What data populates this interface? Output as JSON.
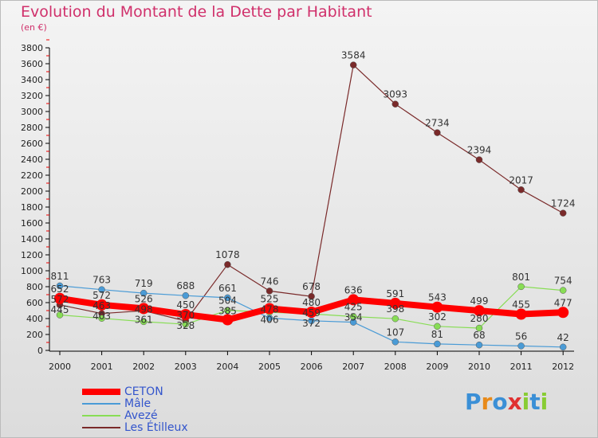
{
  "header": {
    "title": "Evolution du Montant de la Dette par Habitant",
    "unit": "(en €)"
  },
  "logo": "Proxiti",
  "chart_data": {
    "type": "line",
    "title": "Evolution du Montant de la Dette par Habitant",
    "ylabel": "(en €)",
    "ylim": [
      0,
      3800
    ],
    "yticks": [
      0,
      200,
      400,
      600,
      800,
      1000,
      1200,
      1400,
      1600,
      1800,
      2000,
      2200,
      2400,
      2600,
      2800,
      3000,
      3200,
      3400,
      3600,
      3800
    ],
    "x": [
      "2000",
      "2001",
      "2002",
      "2003",
      "2004",
      "2005",
      "2006",
      "2007",
      "2008",
      "2009",
      "2010",
      "2011",
      "2012"
    ],
    "legend_placement": "bottom-left",
    "series": [
      {
        "name": "CETON",
        "color": "#ff0000",
        "width": 8,
        "values": [
          652,
          572,
          526,
          450,
          385,
          525,
          480,
          636,
          591,
          543,
          499,
          455,
          477
        ]
      },
      {
        "name": "Mâle",
        "color": "#4a9bd6",
        "width": 1.2,
        "values": [
          811,
          763,
          719,
          688,
          661,
          406,
          372,
          354,
          107,
          81,
          68,
          56,
          42
        ]
      },
      {
        "name": "Avezé",
        "color": "#88dd55",
        "width": 1.2,
        "values": [
          445,
          403,
          361,
          328,
          504,
          478,
          459,
          425,
          398,
          302,
          280,
          801,
          754
        ]
      },
      {
        "name": "Les Étilleux",
        "color": "#7a2a2a",
        "width": 1.2,
        "values": [
          572,
          463,
          498,
          370,
          1078,
          746,
          678,
          3584,
          3093,
          2734,
          2394,
          2017,
          1724
        ]
      }
    ]
  }
}
